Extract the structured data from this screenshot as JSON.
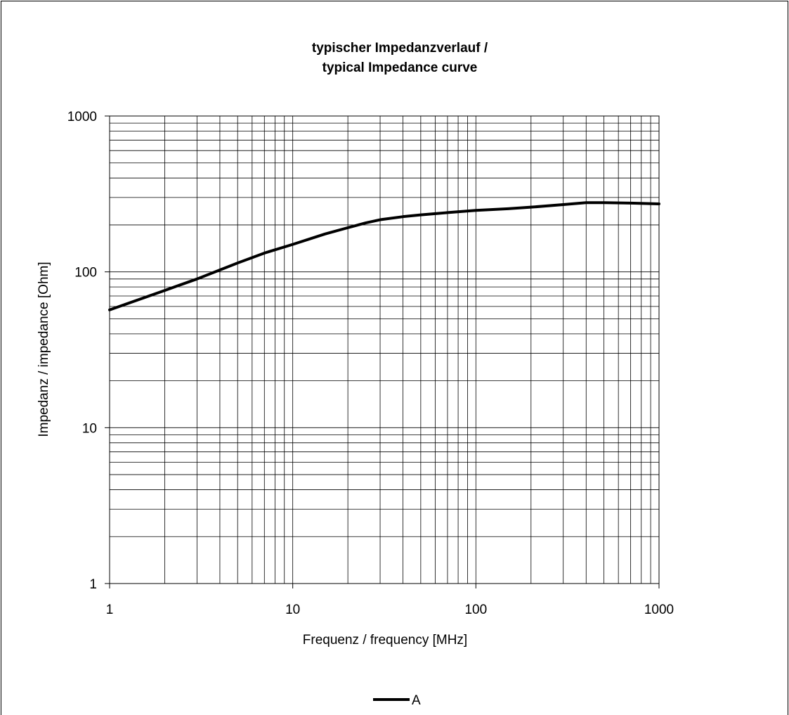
{
  "chart_data": {
    "type": "line",
    "title_line1": "typischer Impedanzverlauf /",
    "title_line2": "typical Impedance curve",
    "xlabel": "Frequenz / frequency [MHz]",
    "ylabel": "Impedanz / impedance [Ohm]",
    "xscale": "log",
    "yscale": "log",
    "xlim": [
      1,
      1000
    ],
    "ylim": [
      1,
      1000
    ],
    "grid": true,
    "legend_position": "bottom-center",
    "x_ticks": [
      {
        "value": 1,
        "label": "1"
      },
      {
        "value": 10,
        "label": "10"
      },
      {
        "value": 100,
        "label": "100"
      },
      {
        "value": 1000,
        "label": "1000"
      }
    ],
    "y_ticks": [
      {
        "value": 1,
        "label": "1"
      },
      {
        "value": 10,
        "label": "10"
      },
      {
        "value": 100,
        "label": "100"
      },
      {
        "value": 1000,
        "label": "1000"
      }
    ],
    "series": [
      {
        "name": "A",
        "color": "#000000",
        "x": [
          1,
          2,
          3,
          5,
          7,
          10,
          15,
          20,
          25,
          30,
          40,
          50,
          70,
          100,
          150,
          200,
          300,
          400,
          500,
          700,
          1000
        ],
        "y": [
          57,
          76,
          90,
          114,
          132,
          150,
          175,
          192,
          206,
          216,
          226,
          232,
          240,
          248,
          254,
          260,
          270,
          278,
          278,
          276,
          273
        ]
      }
    ]
  }
}
